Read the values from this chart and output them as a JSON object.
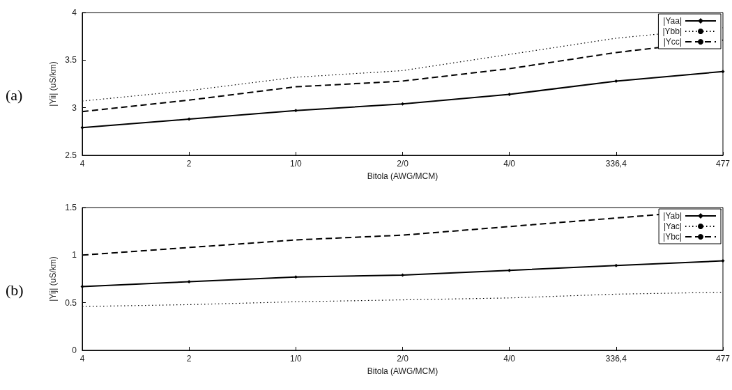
{
  "chart_data": [
    {
      "type": "line",
      "xlabel": "Bitola (AWG/MCM)",
      "ylabel": "|Yii| (uS/km)",
      "annotations": [
        "(a)"
      ],
      "categories": [
        "4",
        "2",
        "1/0",
        "2/0",
        "4/0",
        "336,4",
        "477"
      ],
      "ylim": [
        2.5,
        4
      ],
      "yticks": [
        2.5,
        3,
        3.5,
        4
      ],
      "grid": false,
      "legend": "top right",
      "series": [
        {
          "name": "|Yaa|",
          "color": "#000000",
          "line_style": "solid",
          "marker": "diamond",
          "values": [
            2.79,
            2.88,
            2.97,
            3.04,
            3.14,
            3.28,
            3.38
          ]
        },
        {
          "name": "|Ybb|",
          "color": "#000000",
          "line_style": "dotted",
          "marker": "none",
          "values": [
            3.07,
            3.18,
            3.32,
            3.39,
            3.56,
            3.73,
            3.84
          ]
        },
        {
          "name": "|Ycc|",
          "color": "#000000",
          "line_style": "dashed",
          "marker": "none",
          "values": [
            2.96,
            3.08,
            3.22,
            3.28,
            3.41,
            3.58,
            3.71
          ]
        }
      ]
    },
    {
      "type": "line",
      "xlabel": "Bitola (AWG/MCM)",
      "ylabel": "|Yij| (uS/km)",
      "annotations": [
        "(b)"
      ],
      "categories": [
        "4",
        "2",
        "1/0",
        "2/0",
        "4/0",
        "336,4",
        "477"
      ],
      "ylim": [
        0,
        1.5
      ],
      "yticks": [
        0,
        0.5,
        1,
        1.5
      ],
      "grid": false,
      "legend": "top right",
      "series": [
        {
          "name": "|Yab|",
          "color": "#000000",
          "line_style": "solid",
          "marker": "diamond",
          "values": [
            0.67,
            0.72,
            0.77,
            0.79,
            0.84,
            0.89,
            0.94
          ]
        },
        {
          "name": "|Yac|",
          "color": "#000000",
          "line_style": "dotted",
          "marker": "none",
          "values": [
            0.46,
            0.48,
            0.51,
            0.53,
            0.55,
            0.59,
            0.61
          ]
        },
        {
          "name": "|Ybc|",
          "color": "#000000",
          "line_style": "dashed",
          "marker": "none",
          "values": [
            1.0,
            1.08,
            1.16,
            1.21,
            1.3,
            1.39,
            1.48
          ]
        }
      ]
    }
  ]
}
